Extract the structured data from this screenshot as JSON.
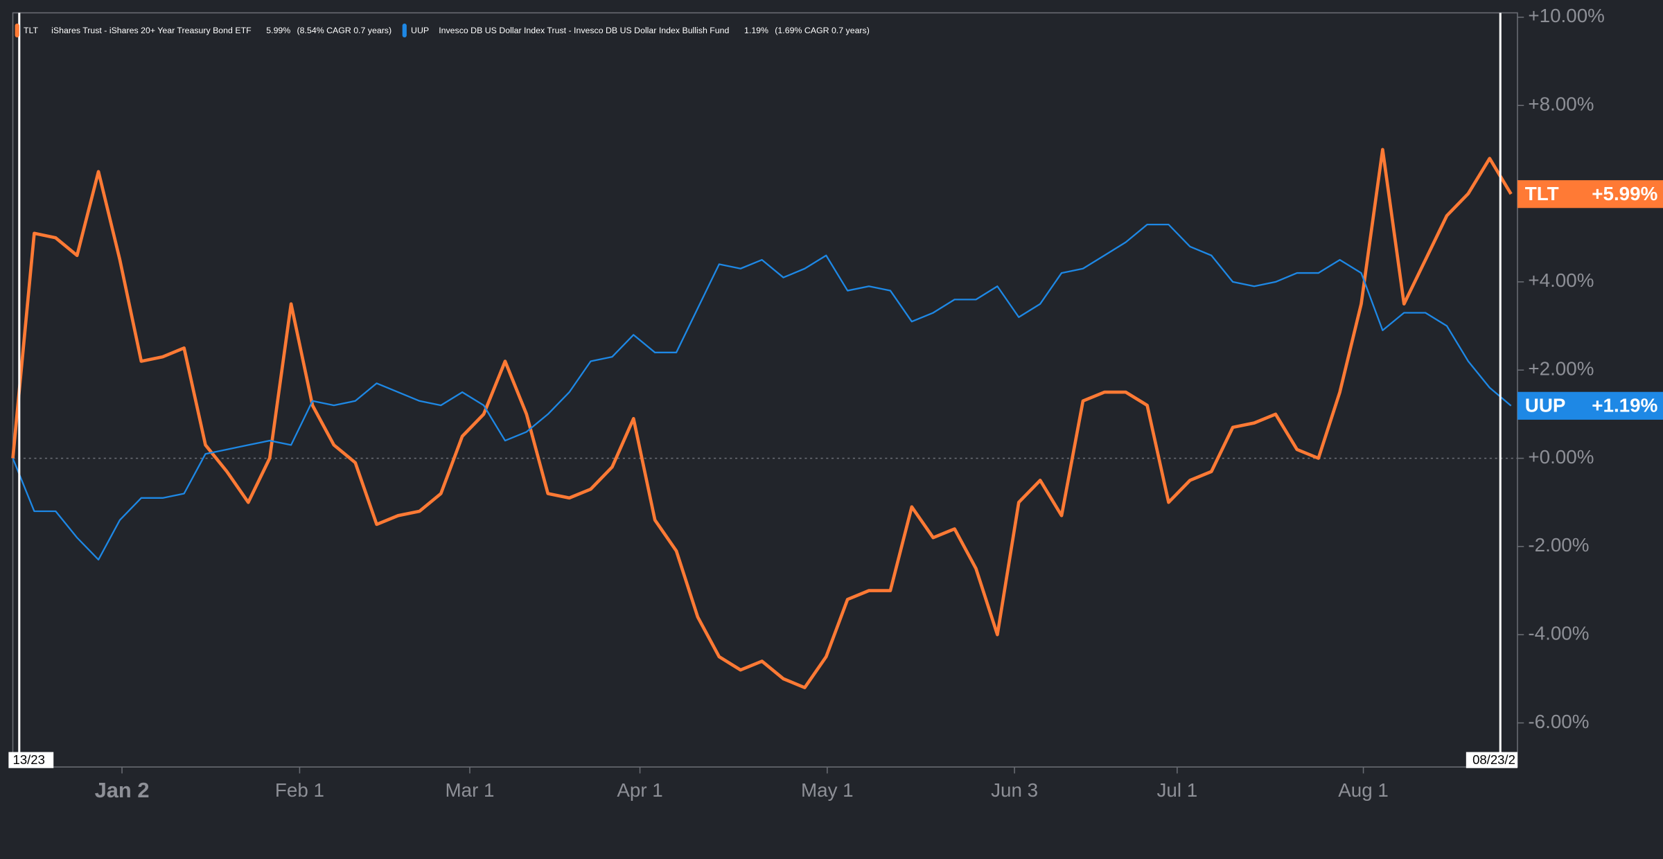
{
  "chart_data": {
    "type": "line",
    "start_label": "13/23",
    "end_label": "08/23/2",
    "xlim": [
      0,
      70
    ],
    "xticks": [
      {
        "value": 5.1,
        "label": "Jan 2"
      },
      {
        "value": 13.4,
        "label": "Feb 1"
      },
      {
        "value": 21.35,
        "label": "Mar 1"
      },
      {
        "value": 29.3,
        "label": "Apr 1"
      },
      {
        "value": 38.05,
        "label": "May 1"
      },
      {
        "value": 46.8,
        "label": "Jun 3"
      },
      {
        "value": 54.4,
        "label": "Jul 1"
      },
      {
        "value": 63.1,
        "label": "Aug 1"
      }
    ],
    "ylim": [
      -7,
      10.1
    ],
    "yticks": [
      {
        "value": 10,
        "label": "+10.00%"
      },
      {
        "value": 8,
        "label": "+8.00%"
      },
      {
        "value": 6,
        "label": "+6.00%"
      },
      {
        "value": 4,
        "label": "+4.00%"
      },
      {
        "value": 2,
        "label": "+2.00%"
      },
      {
        "value": 0,
        "label": "+0.00%"
      },
      {
        "value": -2,
        "label": "-2.00%"
      },
      {
        "value": -4,
        "label": "-4.00%"
      },
      {
        "value": -6,
        "label": "-6.00%"
      }
    ],
    "series": [
      {
        "name": "TLT",
        "description": "iShares Trust - iShares 20+ Year Treasury Bond ETF",
        "change_label": "5.99%",
        "cagr_label": "(8.54% CAGR 0.7 years)",
        "badge_label": "+5.99%",
        "color": "#ff7a35",
        "values": [
          0,
          5.1,
          5.0,
          4.6,
          6.5,
          4.5,
          2.2,
          2.3,
          2.5,
          0.3,
          -0.3,
          -1.0,
          0.0,
          3.5,
          1.2,
          0.3,
          -0.1,
          -1.5,
          -1.3,
          -1.2,
          -0.8,
          0.5,
          1.0,
          2.2,
          1.0,
          -0.8,
          -0.9,
          -0.7,
          -0.2,
          0.9,
          -1.4,
          -2.1,
          -3.6,
          -4.5,
          -4.8,
          -4.6,
          -5.0,
          -5.2,
          -4.5,
          -3.2,
          -3.0,
          -3.0,
          -1.1,
          -1.8,
          -1.6,
          -2.5,
          -4.0,
          -1.0,
          -0.5,
          -1.3,
          1.3,
          1.5,
          1.5,
          1.2,
          -1.0,
          -0.5,
          -0.3,
          0.7,
          0.8,
          1.0,
          0.2,
          0.0,
          1.5,
          3.5,
          7.0,
          3.5,
          4.5,
          5.5,
          6.0,
          6.8,
          5.99
        ]
      },
      {
        "name": "UUP",
        "description": "Invesco DB US Dollar Index Trust - Invesco DB US Dollar Index Bullish Fund",
        "change_label": "1.19%",
        "cagr_label": "(1.69% CAGR 0.7 years)",
        "badge_label": "+1.19%",
        "color": "#1e88e5",
        "values": [
          0,
          -1.2,
          -1.2,
          -1.8,
          -2.3,
          -1.4,
          -0.9,
          -0.9,
          -0.8,
          0.1,
          0.2,
          0.3,
          0.4,
          0.3,
          1.3,
          1.2,
          1.3,
          1.7,
          1.5,
          1.3,
          1.2,
          1.5,
          1.2,
          0.4,
          0.6,
          1.0,
          1.5,
          2.2,
          2.3,
          2.8,
          2.4,
          2.4,
          3.4,
          4.4,
          4.3,
          4.5,
          4.1,
          4.3,
          4.6,
          3.8,
          3.9,
          3.8,
          3.1,
          3.3,
          3.6,
          3.6,
          3.9,
          3.2,
          3.5,
          4.2,
          4.3,
          4.6,
          4.9,
          5.3,
          5.3,
          4.8,
          4.6,
          4.0,
          3.9,
          4.0,
          4.2,
          4.2,
          4.5,
          4.2,
          2.9,
          3.3,
          3.3,
          3.0,
          2.2,
          1.6,
          1.19
        ]
      }
    ]
  }
}
